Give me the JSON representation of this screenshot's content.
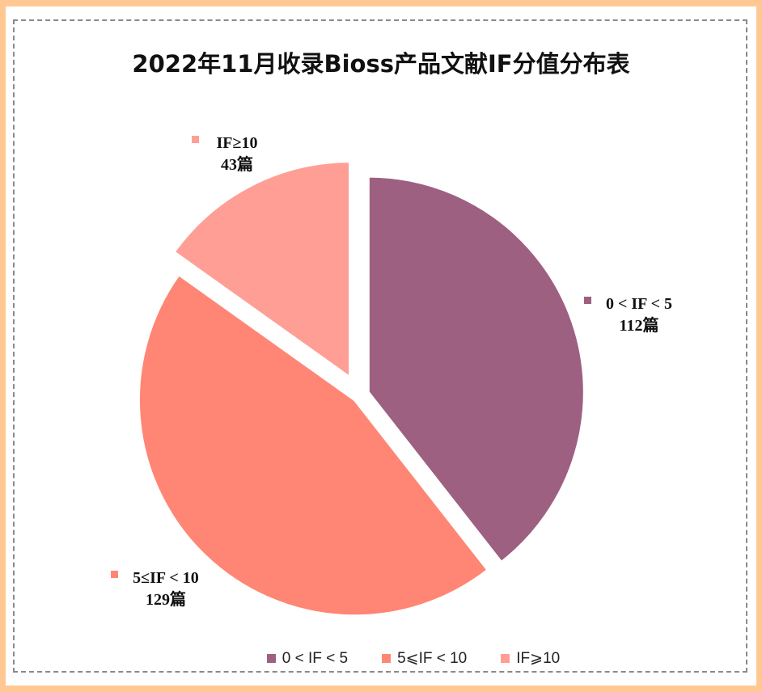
{
  "chart_data": {
    "type": "pie",
    "title": "2022年11月收录Bioss产品文献IF分值分布表",
    "unit": "篇",
    "slices": [
      {
        "label": "0 < IF < 5",
        "value": 112,
        "value_label": "112篇",
        "color": "#9e6080"
      },
      {
        "label": "5≤IF < 10",
        "value": 129,
        "value_label": "129篇",
        "color": "#ff8674"
      },
      {
        "label": "IF≥10",
        "value": 43,
        "value_label": "43篇",
        "color": "#ff9e94"
      }
    ],
    "legend_labels": [
      "0 < IF < 5",
      "5⩽IF < 10",
      "IF⩾10"
    ],
    "legend_position": "bottom",
    "start_angle": "top",
    "direction": "clockwise",
    "exploded": true
  }
}
